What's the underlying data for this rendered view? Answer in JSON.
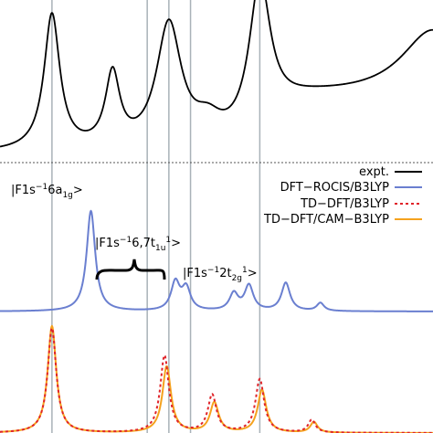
{
  "chart_data": {
    "type": "line",
    "title": "",
    "xlabel": "",
    "ylabel": "",
    "grid": "vertical reference lines at peak positions",
    "legend_placement": "right",
    "legend": [
      {
        "label": "expt.",
        "color": "#000000",
        "style": "solid"
      },
      {
        "label": "DFT−ROCIS/B3LYP",
        "color": "#6a7fd0",
        "style": "solid"
      },
      {
        "label": "TD−DFT/B3LYP",
        "color": "#e0242a",
        "style": "dotted"
      },
      {
        "label": "TD−DFT/CAM−B3LYP",
        "color": "#f5a21e",
        "style": "solid"
      }
    ],
    "annotations": {
      "a1g": {
        "base": "|F1s",
        "sup1": "−1",
        "mid": "6a",
        "sub": "1g",
        "end": ">"
      },
      "t1u": {
        "base": "|F1s",
        "sup1": "−1",
        "mid": "6,7t",
        "sub": "1u",
        "sup2": "1",
        "end": ">"
      },
      "t2g": {
        "base": "|F1s",
        "sup1": "−1",
        "mid": "2t",
        "sub": "2g",
        "sup2": "1",
        "end": ">"
      }
    },
    "reference_lines": [
      0.12,
      0.34,
      0.39,
      0.44,
      0.6
    ],
    "series": [
      {
        "name": "expt.",
        "color": "#000000",
        "style": "solid",
        "baseline": 0,
        "peaks": [
          {
            "x": 0.12,
            "amp": 0.9,
            "w": 0.022
          },
          {
            "x": 0.26,
            "amp": 0.48,
            "w": 0.02
          },
          {
            "x": 0.39,
            "amp": 0.82,
            "w": 0.035
          },
          {
            "x": 0.48,
            "amp": 0.14,
            "w": 0.04
          },
          {
            "x": 0.6,
            "amp": 0.97,
            "w": 0.03
          },
          {
            "x": 1.0,
            "amp": 0.45,
            "w": 0.09
          }
        ],
        "step": {
          "center": 0.62,
          "height": 0.36,
          "width": 0.04
        }
      },
      {
        "name": "DFT−ROCIS/B3LYP",
        "color": "#6a7fd0",
        "style": "solid",
        "baseline": 0,
        "peaks": [
          {
            "x": 0.21,
            "amp": 1.0,
            "w": 0.012
          },
          {
            "x": 0.405,
            "amp": 0.28,
            "w": 0.012
          },
          {
            "x": 0.43,
            "amp": 0.22,
            "w": 0.012
          },
          {
            "x": 0.54,
            "amp": 0.17,
            "w": 0.012
          },
          {
            "x": 0.575,
            "amp": 0.25,
            "w": 0.012
          },
          {
            "x": 0.66,
            "amp": 0.28,
            "w": 0.012
          },
          {
            "x": 0.74,
            "amp": 0.08,
            "w": 0.01
          }
        ]
      },
      {
        "name": "TD−DFT/B3LYP",
        "color": "#e0242a",
        "style": "dotted",
        "baseline": 0,
        "peaks": [
          {
            "x": 0.12,
            "amp": 0.98,
            "w": 0.012
          },
          {
            "x": 0.38,
            "amp": 0.72,
            "w": 0.012
          },
          {
            "x": 0.49,
            "amp": 0.35,
            "w": 0.012
          },
          {
            "x": 0.6,
            "amp": 0.5,
            "w": 0.012
          },
          {
            "x": 0.72,
            "amp": 0.12,
            "w": 0.01
          }
        ]
      },
      {
        "name": "TD−DFT/CAM−B3LYP",
        "color": "#f5a21e",
        "style": "solid",
        "baseline": 0,
        "peaks": [
          {
            "x": 0.12,
            "amp": 1.0,
            "w": 0.012
          },
          {
            "x": 0.385,
            "amp": 0.62,
            "w": 0.012
          },
          {
            "x": 0.495,
            "amp": 0.28,
            "w": 0.012
          },
          {
            "x": 0.605,
            "amp": 0.4,
            "w": 0.012
          },
          {
            "x": 0.725,
            "amp": 0.1,
            "w": 0.01
          }
        ]
      }
    ]
  }
}
